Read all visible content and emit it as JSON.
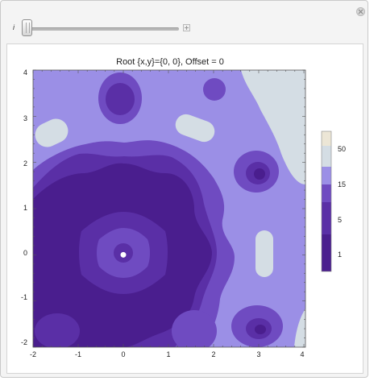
{
  "control": {
    "label": "i"
  },
  "plot": {
    "title": "Root {x,y}={0, 0}, Offset = 0",
    "x_ticks": [
      "-2",
      "-1",
      "0",
      "1",
      "2",
      "3",
      "4"
    ],
    "y_ticks": [
      "3",
      "2",
      "1",
      "0",
      "-1",
      "-2"
    ],
    "top_left_label": "4",
    "legend_labels": [
      "50",
      "15",
      "5",
      "1"
    ],
    "root_point": {
      "x": 0,
      "y": 0
    }
  },
  "colors": {
    "level1": "#4a1e8e",
    "level2": "#5a2fa6",
    "level3": "#6f4bc1",
    "level4": "#9b8fe6",
    "level5": "#d4dde4",
    "level6": "#ece6d6"
  }
}
